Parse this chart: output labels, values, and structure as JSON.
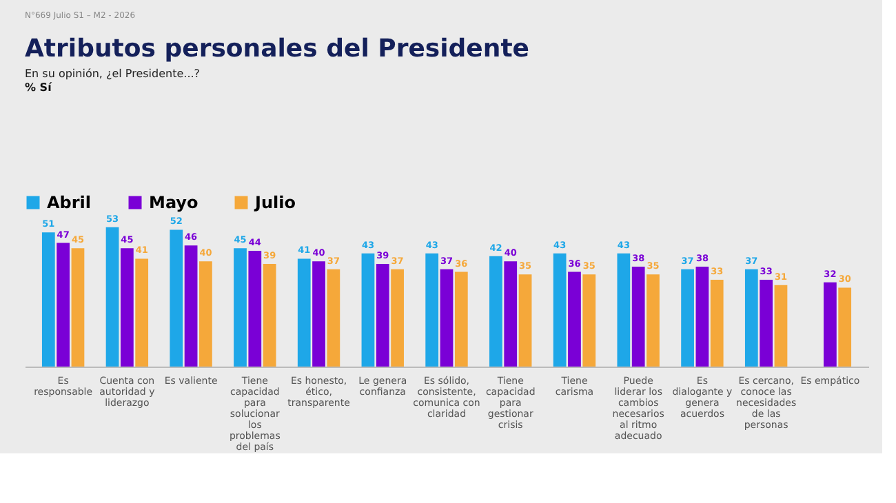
{
  "chart_data": {
    "type": "bar",
    "title": "Atributos personales del Presidente",
    "subtitle": "En su opinión, ¿el Presidente...?",
    "annotations": [
      "N°669 Julio S1 – M2 - 2026",
      "% Sí"
    ],
    "categories": [
      "Es responsable",
      "Cuenta con autoridad y liderazgo",
      "Es valiente",
      "Tiene capacidad para solucionar los problemas del país",
      "Es honesto, ético, transparente",
      "Le genera confianza",
      "Es sólido, consistente, comunica con claridad",
      "Tiene capacidad para gestionar crisis",
      "Tiene carisma",
      "Puede liderar los cambios necesarios al ritmo adecuado",
      "Es dialogante y genera acuerdos",
      "Es cercano, conoce las necesidades de las personas",
      "Es empático"
    ],
    "series": [
      {
        "name": "Abril",
        "color": "#1ea7e8",
        "values": [
          51,
          53,
          52,
          45,
          41,
          43,
          43,
          42,
          43,
          43,
          37,
          37,
          null
        ]
      },
      {
        "name": "Mayo",
        "color": "#7a00d6",
        "values": [
          47,
          45,
          46,
          44,
          40,
          39,
          37,
          40,
          36,
          38,
          38,
          33,
          32
        ]
      },
      {
        "name": "Julio",
        "color": "#f5a83a",
        "values": [
          45,
          41,
          40,
          39,
          37,
          37,
          36,
          35,
          35,
          35,
          33,
          31,
          30
        ]
      }
    ],
    "data_labels": true,
    "legend": "top",
    "grid": false,
    "tick_labels": "x"
  }
}
